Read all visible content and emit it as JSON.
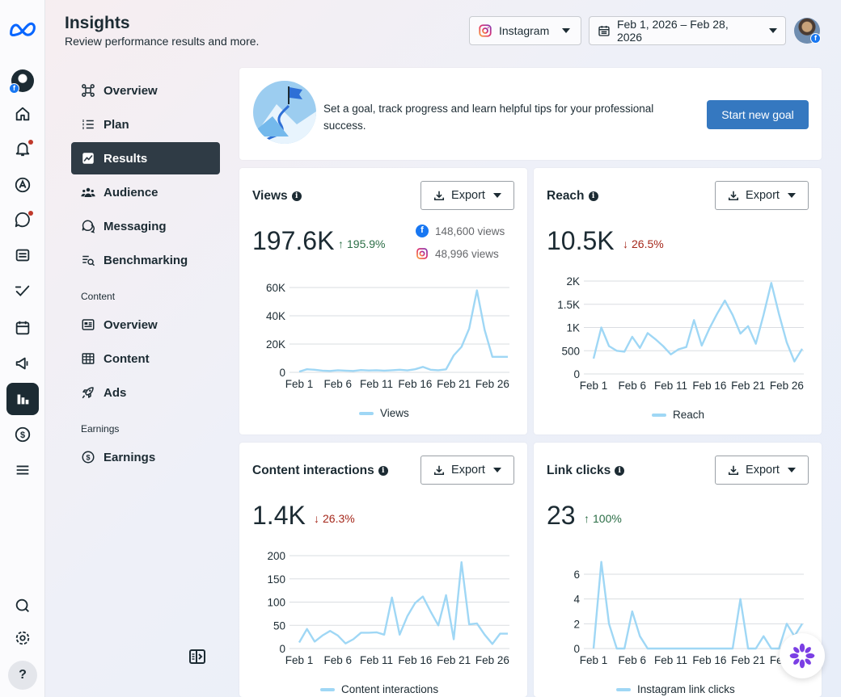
{
  "header": {
    "title": "Insights",
    "subtitle": "Review performance results and more.",
    "platform_select": "Instagram",
    "date_range": "Feb 1, 2026 – Feb 28, 2026"
  },
  "rail": {
    "icons": [
      "meta-logo-icon",
      "profile-avatar",
      "home-icon",
      "notifications-icon",
      "ads-icon",
      "messenger-icon",
      "content-icon",
      "planner-icon",
      "calendar-icon",
      "megaphone-icon",
      "insights-icon",
      "monetization-icon",
      "menu-icon",
      "search-icon",
      "settings-icon",
      "help-icon"
    ],
    "help_label": "?"
  },
  "nav": {
    "items": [
      {
        "label": "Overview",
        "icon": "overview-icon"
      },
      {
        "label": "Plan",
        "icon": "plan-icon"
      },
      {
        "label": "Results",
        "icon": "results-icon",
        "active": true
      },
      {
        "label": "Audience",
        "icon": "audience-icon"
      },
      {
        "label": "Messaging",
        "icon": "messaging-icon"
      },
      {
        "label": "Benchmarking",
        "icon": "benchmarking-icon"
      }
    ],
    "content_section": "Content",
    "content_items": [
      {
        "label": "Overview",
        "icon": "content-overview-icon"
      },
      {
        "label": "Content",
        "icon": "content-table-icon"
      },
      {
        "label": "Ads",
        "icon": "rocket-icon"
      }
    ],
    "earnings_section": "Earnings",
    "earnings_items": [
      {
        "label": "Earnings",
        "icon": "dollar-icon"
      }
    ]
  },
  "goal": {
    "text": "Set a goal, track progress and learn helpful tips for your professional success.",
    "button": "Start new goal"
  },
  "cards": {
    "views": {
      "title": "Views",
      "export": "Export",
      "value": "197.6K",
      "delta": "195.9%",
      "direction": "up",
      "facebook": "148,600 views",
      "instagram": "48,996 views",
      "legend": "Views"
    },
    "reach": {
      "title": "Reach",
      "export": "Export",
      "value": "10.5K",
      "delta": "26.5%",
      "direction": "down",
      "legend": "Reach"
    },
    "interactions": {
      "title": "Content interactions",
      "export": "Export",
      "value": "1.4K",
      "delta": "26.3%",
      "direction": "down",
      "legend": "Content interactions"
    },
    "linkclicks": {
      "title": "Link clicks",
      "export": "Export",
      "value": "23",
      "delta": "100%",
      "direction": "up",
      "legend": "Instagram link clicks"
    }
  },
  "colors": {
    "line": "#9fd7f5",
    "accent_button": "#3578c0",
    "active_nav": "#2f3b45",
    "up": "#2b6e46",
    "down": "#a5281b"
  },
  "chart_data": [
    {
      "type": "line",
      "id": "views",
      "x": [
        "Feb 1",
        "Feb 2",
        "Feb 3",
        "Feb 4",
        "Feb 5",
        "Feb 6",
        "Feb 7",
        "Feb 8",
        "Feb 9",
        "Feb 10",
        "Feb 11",
        "Feb 12",
        "Feb 13",
        "Feb 14",
        "Feb 15",
        "Feb 16",
        "Feb 17",
        "Feb 18",
        "Feb 19",
        "Feb 20",
        "Feb 21",
        "Feb 22",
        "Feb 23",
        "Feb 24",
        "Feb 25",
        "Feb 26",
        "Feb 27",
        "Feb 28"
      ],
      "series": [
        {
          "name": "Views",
          "values": [
            500,
            2200,
            1800,
            1200,
            1000,
            1500,
            1200,
            1000,
            1600,
            1300,
            1500,
            1200,
            1500,
            1800,
            1400,
            2200,
            3800,
            1800,
            1500,
            2100,
            12000,
            18000,
            31000,
            58000,
            30000,
            11000,
            11000,
            11000
          ]
        }
      ],
      "xticks": [
        "Feb 1",
        "Feb 6",
        "Feb 11",
        "Feb 16",
        "Feb 21",
        "Feb 26"
      ],
      "yticks": [
        "0",
        "20K",
        "40K",
        "60K"
      ],
      "ylim": [
        0,
        60000
      ]
    },
    {
      "type": "line",
      "id": "reach",
      "x": [
        "Feb 1",
        "Feb 2",
        "Feb 3",
        "Feb 4",
        "Feb 5",
        "Feb 6",
        "Feb 7",
        "Feb 8",
        "Feb 9",
        "Feb 10",
        "Feb 11",
        "Feb 12",
        "Feb 13",
        "Feb 14",
        "Feb 15",
        "Feb 16",
        "Feb 17",
        "Feb 18",
        "Feb 19",
        "Feb 20",
        "Feb 21",
        "Feb 22",
        "Feb 23",
        "Feb 24",
        "Feb 25",
        "Feb 26",
        "Feb 27",
        "Feb 28"
      ],
      "series": [
        {
          "name": "Reach",
          "values": [
            330,
            1000,
            600,
            500,
            480,
            800,
            560,
            880,
            750,
            600,
            420,
            530,
            580,
            1160,
            610,
            980,
            1300,
            1580,
            1270,
            870,
            1030,
            650,
            1270,
            1960,
            1290,
            680,
            270,
            540
          ]
        }
      ],
      "xticks": [
        "Feb 1",
        "Feb 6",
        "Feb 11",
        "Feb 16",
        "Feb 21",
        "Feb 26"
      ],
      "yticks": [
        "0",
        "500",
        "1K",
        "1.5K",
        "2K"
      ],
      "ylim": [
        0,
        2000
      ]
    },
    {
      "type": "line",
      "id": "interactions",
      "x": [
        "Feb 1",
        "Feb 2",
        "Feb 3",
        "Feb 4",
        "Feb 5",
        "Feb 6",
        "Feb 7",
        "Feb 8",
        "Feb 9",
        "Feb 10",
        "Feb 11",
        "Feb 12",
        "Feb 13",
        "Feb 14",
        "Feb 15",
        "Feb 16",
        "Feb 17",
        "Feb 18",
        "Feb 19",
        "Feb 20",
        "Feb 21",
        "Feb 22",
        "Feb 23",
        "Feb 24",
        "Feb 25",
        "Feb 26",
        "Feb 27",
        "Feb 28"
      ],
      "series": [
        {
          "name": "Content interactions",
          "values": [
            13,
            42,
            15,
            28,
            38,
            28,
            11,
            20,
            34,
            34,
            35,
            30,
            110,
            30,
            70,
            98,
            112,
            80,
            50,
            115,
            20,
            186,
            52,
            54,
            30,
            10,
            32,
            32
          ]
        }
      ],
      "xticks": [
        "Feb 1",
        "Feb 6",
        "Feb 11",
        "Feb 16",
        "Feb 21",
        "Feb 26"
      ],
      "yticks": [
        "0",
        "50",
        "100",
        "150",
        "200"
      ],
      "ylim": [
        0,
        200
      ]
    },
    {
      "type": "line",
      "id": "linkclicks",
      "x": [
        "Feb 1",
        "Feb 2",
        "Feb 3",
        "Feb 4",
        "Feb 5",
        "Feb 6",
        "Feb 7",
        "Feb 8",
        "Feb 9",
        "Feb 10",
        "Feb 11",
        "Feb 12",
        "Feb 13",
        "Feb 14",
        "Feb 15",
        "Feb 16",
        "Feb 17",
        "Feb 18",
        "Feb 19",
        "Feb 20",
        "Feb 21",
        "Feb 22",
        "Feb 23",
        "Feb 24",
        "Feb 25",
        "Feb 26",
        "Feb 27",
        "Feb 28"
      ],
      "series": [
        {
          "name": "Instagram link clicks",
          "values": [
            0,
            7,
            2,
            0,
            0,
            3,
            1,
            0,
            0,
            0,
            0,
            0,
            0,
            0,
            0,
            0,
            0,
            0,
            0,
            4,
            0,
            0,
            1,
            0,
            0,
            2,
            1,
            2
          ]
        }
      ],
      "xticks": [
        "Feb 1",
        "Feb 6",
        "Feb 11",
        "Feb 16",
        "Feb 21",
        "Feb 26"
      ],
      "yticks": [
        "0",
        "2",
        "4",
        "6"
      ],
      "ylim": [
        0,
        7.5
      ]
    }
  ]
}
